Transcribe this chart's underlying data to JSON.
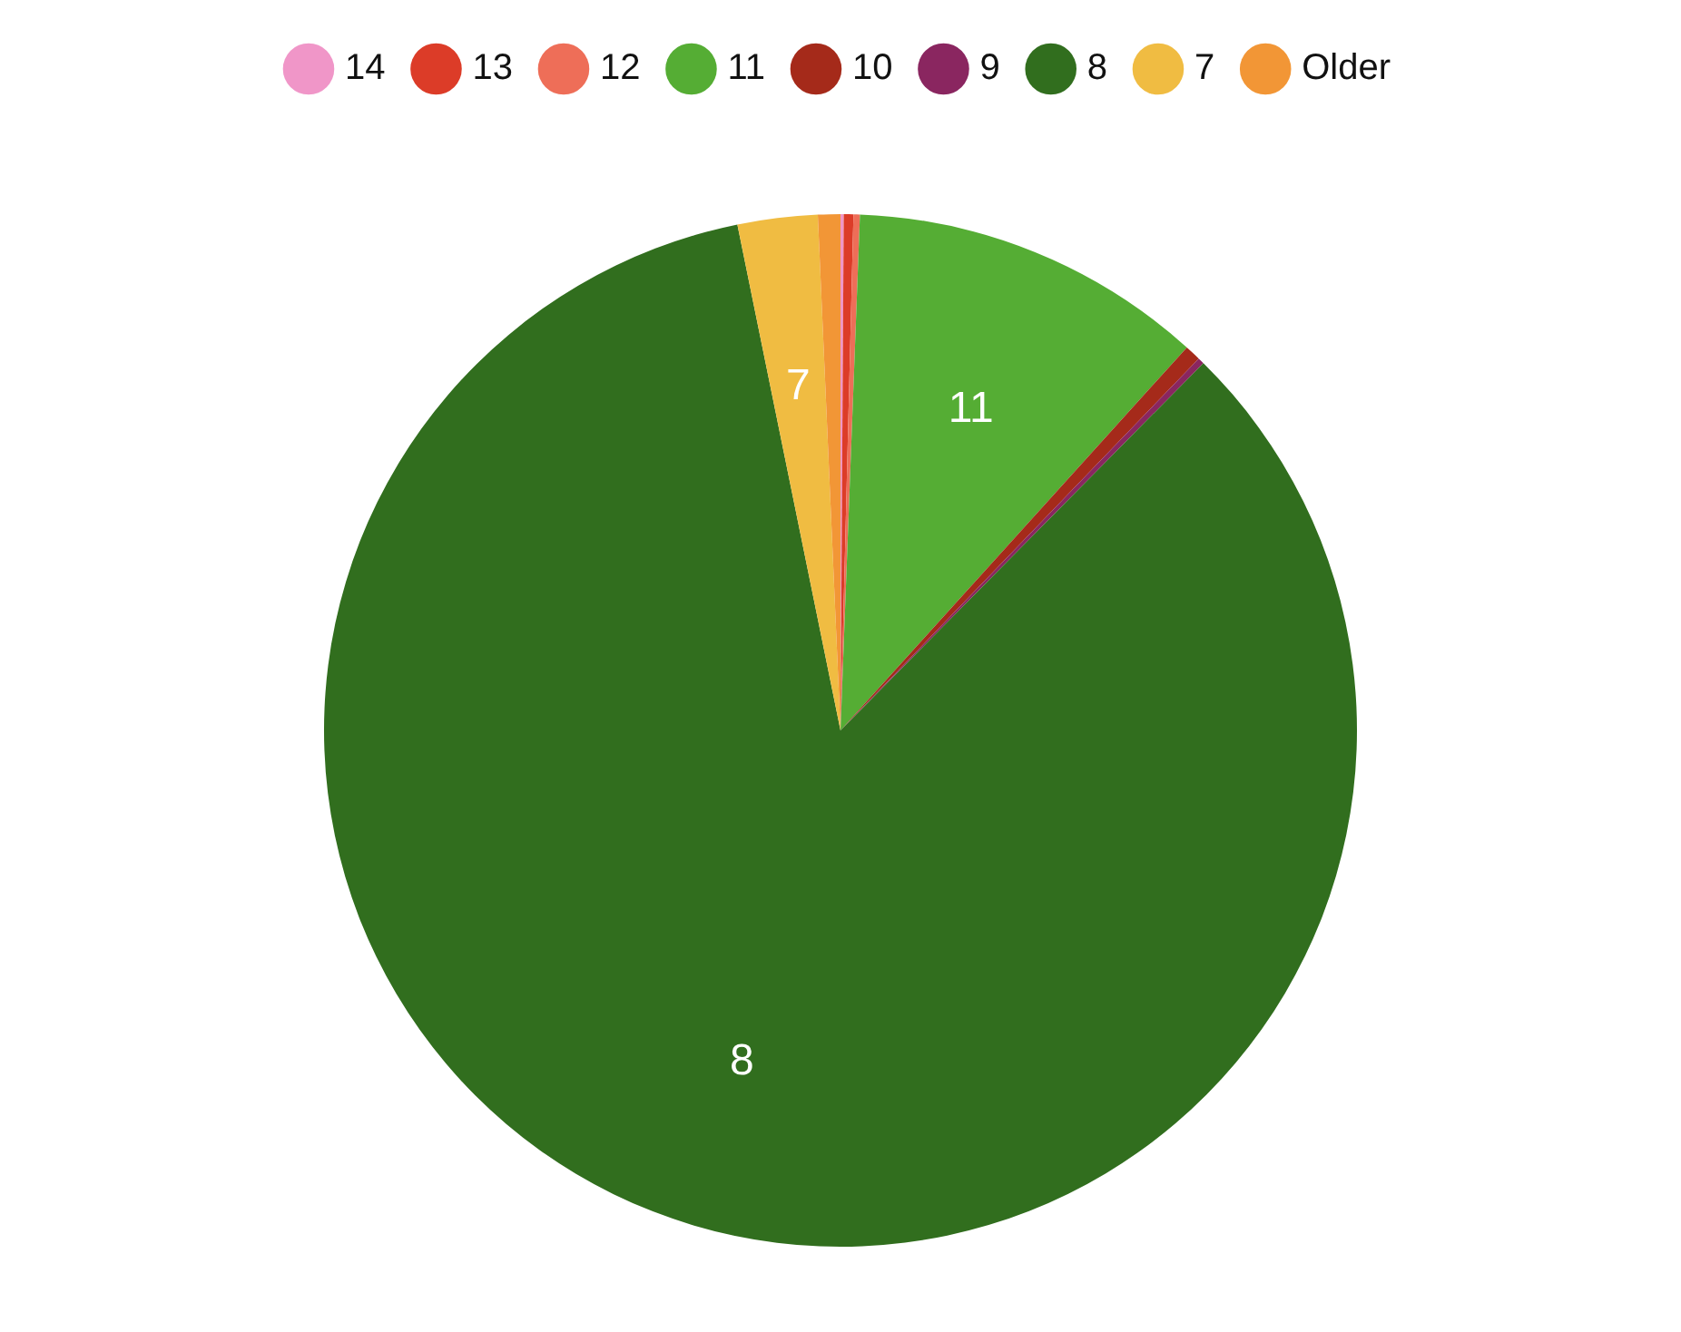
{
  "chart_data": {
    "type": "pie",
    "categories": [
      "14",
      "13",
      "12",
      "11",
      "10",
      "9",
      "8",
      "7",
      "Older"
    ],
    "values": [
      0.1,
      0.3,
      0.2,
      11.1,
      0.5,
      0.2,
      84.4,
      2.5,
      0.7
    ],
    "colors": [
      "#f096c8",
      "#dc3c28",
      "#ee6e58",
      "#55ad34",
      "#a52a1a",
      "#8a2660",
      "#316e1e",
      "#f0bc42",
      "#f29636"
    ],
    "legend": "top"
  }
}
